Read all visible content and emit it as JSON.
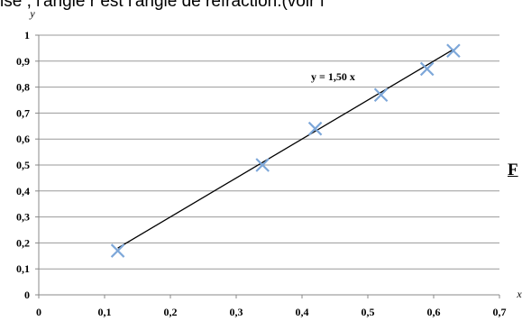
{
  "page": {
    "top_text": "ise , l'angle r est l'angle de réfraction.(voir f",
    "side_text": "F"
  },
  "chart_data": {
    "type": "scatter",
    "title": "",
    "xlabel": "x",
    "ylabel": "y",
    "xlim": [
      0,
      0.7
    ],
    "ylim": [
      0,
      1
    ],
    "x_ticks": [
      0,
      0.1,
      0.2,
      0.3,
      0.4,
      0.5,
      0.6,
      0.7
    ],
    "y_ticks": [
      0,
      0.1,
      0.2,
      0.3,
      0.4,
      0.5,
      0.6,
      0.7,
      0.8,
      0.9,
      1
    ],
    "x_tick_labels": [
      "0",
      "0,1",
      "0,2",
      "0,3",
      "0,4",
      "0,5",
      "0,6",
      "0,7"
    ],
    "y_tick_labels": [
      "0",
      "0,1",
      "0,2",
      "0,3",
      "0,4",
      "0,5",
      "0,6",
      "0,7",
      "0,8",
      "0,9",
      "1"
    ],
    "grid": true,
    "series": [
      {
        "marker": "x",
        "color": "#7da7d9",
        "points": [
          {
            "x": 0.12,
            "y": 0.17
          },
          {
            "x": 0.34,
            "y": 0.5
          },
          {
            "x": 0.42,
            "y": 0.64
          },
          {
            "x": 0.52,
            "y": 0.77
          },
          {
            "x": 0.59,
            "y": 0.87
          },
          {
            "x": 0.63,
            "y": 0.94
          }
        ]
      }
    ],
    "trendline": {
      "slope": 1.5,
      "x_range": [
        0.12,
        0.63
      ],
      "color": "#000000",
      "label": "y = 1,50 x"
    }
  }
}
